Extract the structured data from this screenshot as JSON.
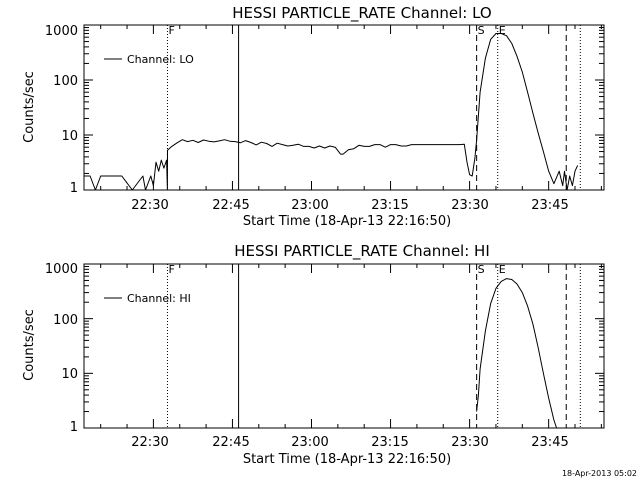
{
  "footer": {
    "timestamp": "18-Apr-2013 05:02"
  },
  "chart_data": [
    {
      "type": "line",
      "title": "HESSI PARTICLE_RATE Channel: LO",
      "xlabel": "Start Time (18-Apr-13 22:16:50)",
      "ylabel": "Counts/sec",
      "y_scale": "log",
      "ylim": [
        1,
        1000
      ],
      "xlim": [
        "22:16:50",
        "23:55:30"
      ],
      "xticks": [
        "22:30",
        "22:45",
        "23:00",
        "23:15",
        "23:30",
        "23:45"
      ],
      "yticks": [
        "1",
        "10",
        "100",
        "1000"
      ],
      "legend": {
        "label": "Channel: LO",
        "position": "top-left"
      },
      "grid": false,
      "markers": [
        {
          "time": "22:32:40",
          "label": "F",
          "style": "dotted"
        },
        {
          "time": "22:46:10",
          "label": "",
          "style": "solid"
        },
        {
          "time": "23:31:20",
          "label": "S",
          "style": "dashed"
        },
        {
          "time": "23:35:20",
          "label": "E",
          "style": "dotted"
        },
        {
          "time": "23:48:20",
          "label": "",
          "style": "dashed"
        },
        {
          "time": "23:51:00",
          "label": "",
          "style": "dotted"
        }
      ],
      "series": [
        {
          "name": "Channel: LO",
          "x": [
            "22:16:50",
            "22:18:00",
            "22:19:00",
            "22:20:00",
            "22:22:00",
            "22:24:00",
            "22:26:00",
            "22:28:00",
            "22:28:30",
            "22:29:30",
            "22:30:00",
            "22:30:30",
            "22:31:00",
            "22:31:30",
            "22:32:00",
            "22:32:30",
            "22:32:40",
            "22:32:41",
            "22:33:30",
            "22:34:30",
            "22:35:30",
            "22:36:30",
            "22:37:30",
            "22:38:30",
            "22:39:30",
            "22:40:30",
            "22:41:30",
            "22:42:30",
            "22:43:30",
            "22:44:30",
            "22:45:30",
            "22:46:30",
            "22:47:30",
            "22:48:30",
            "22:49:30",
            "22:50:30",
            "22:51:30",
            "22:52:30",
            "22:53:30",
            "22:54:30",
            "22:55:30",
            "22:56:30",
            "22:57:30",
            "22:58:30",
            "22:59:30",
            "23:00:30",
            "23:01:30",
            "23:02:30",
            "23:03:30",
            "23:04:30",
            "23:05:30",
            "23:06:00",
            "23:07:00",
            "23:08:00",
            "23:09:00",
            "23:10:00",
            "23:11:00",
            "23:12:00",
            "23:13:00",
            "23:14:00",
            "23:15:00",
            "23:16:00",
            "23:17:00",
            "23:18:00",
            "23:19:00",
            "23:20:00",
            "23:21:00",
            "23:22:00",
            "23:23:00",
            "23:24:00",
            "23:25:00",
            "23:26:00",
            "23:27:00",
            "23:28:00",
            "23:29:00",
            "23:29:30",
            "23:30:00",
            "23:30:30",
            "23:31:00",
            "23:31:20",
            "23:32:00",
            "23:33:00",
            "23:34:00",
            "23:35:00",
            "23:36:00",
            "23:37:00",
            "23:38:00",
            "23:39:00",
            "23:40:00",
            "23:41:00",
            "23:42:00",
            "23:43:00",
            "23:44:00",
            "23:45:00",
            "23:46:00",
            "23:47:00",
            "23:47:40",
            "23:48:00",
            "23:48:30",
            "23:49:00",
            "23:49:30",
            "23:50:00",
            "23:50:30"
          ],
          "y": [
            1.8,
            1.8,
            1,
            1.8,
            1.8,
            1.8,
            1,
            1.8,
            1,
            1.8,
            1.2,
            3.2,
            2.2,
            3.5,
            2.5,
            3.5,
            1,
            5.3,
            6.2,
            7.2,
            8.2,
            7.6,
            8.0,
            7.3,
            8.1,
            7.7,
            7.5,
            7.8,
            8.2,
            7.7,
            7.6,
            7.2,
            7.9,
            7.3,
            6.6,
            7.4,
            7.0,
            6.2,
            7.1,
            6.7,
            6.3,
            6.5,
            6.8,
            6.2,
            6.2,
            5.8,
            6.3,
            5.8,
            6.3,
            6.0,
            4.5,
            4.5,
            5.4,
            5.6,
            6.5,
            6.2,
            6.2,
            6.7,
            6.7,
            6.0,
            6.7,
            6.7,
            6.3,
            6.3,
            6.7,
            6.7,
            6.7,
            6.7,
            6.7,
            6.7,
            6.7,
            6.7,
            6.7,
            6.7,
            6.8,
            3.2,
            1.9,
            1.8,
            3.8,
            8,
            60,
            250,
            550,
            700,
            700,
            640,
            460,
            270,
            140,
            60,
            25,
            11,
            5,
            2.2,
            1.3,
            2.2,
            1.2,
            2.2,
            1,
            1.8,
            1.2,
            2.2,
            2.8
          ]
        }
      ]
    },
    {
      "type": "line",
      "title": "HESSI PARTICLE_RATE Channel: HI",
      "xlabel": "Start Time (18-Apr-13 22:16:50)",
      "ylabel": "Counts/sec",
      "y_scale": "log",
      "ylim": [
        1,
        1000
      ],
      "xlim": [
        "22:16:50",
        "23:55:30"
      ],
      "xticks": [
        "22:30",
        "22:45",
        "23:00",
        "23:15",
        "23:30",
        "23:45"
      ],
      "yticks": [
        "1",
        "10",
        "100",
        "1000"
      ],
      "legend": {
        "label": "Channel: HI",
        "position": "top-left"
      },
      "grid": false,
      "markers": [
        {
          "time": "22:32:40",
          "label": "F",
          "style": "dotted"
        },
        {
          "time": "22:46:10",
          "label": "",
          "style": "solid"
        },
        {
          "time": "23:31:20",
          "label": "S",
          "style": "dashed"
        },
        {
          "time": "23:35:20",
          "label": "E",
          "style": "dotted"
        },
        {
          "time": "23:48:20",
          "label": "",
          "style": "dashed"
        },
        {
          "time": "23:51:00",
          "label": "",
          "style": "dotted"
        }
      ],
      "series": [
        {
          "name": "Channel: HI",
          "x": [
            "23:31:20",
            "23:31:40",
            "23:32:00",
            "23:33:00",
            "23:34:00",
            "23:35:00",
            "23:36:00",
            "23:37:00",
            "23:38:00",
            "23:39:00",
            "23:40:00",
            "23:41:00",
            "23:42:00",
            "23:43:00",
            "23:44:00",
            "23:45:00",
            "23:46:00",
            "23:46:30"
          ],
          "y": [
            2,
            4,
            12,
            60,
            190,
            360,
            480,
            540,
            520,
            430,
            300,
            170,
            80,
            30,
            10,
            3.5,
            1.4,
            1
          ]
        }
      ]
    }
  ]
}
